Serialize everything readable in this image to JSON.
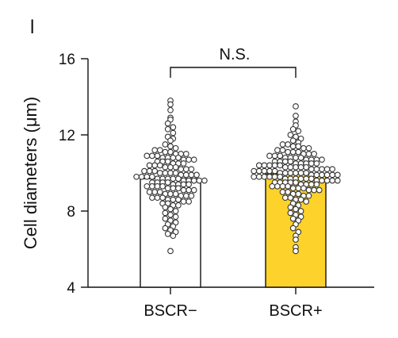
{
  "panel_label": "l",
  "chart_data": {
    "type": "bar",
    "title": "",
    "xlabel": "",
    "ylabel": "Cell diameters (μm)",
    "ylim": [
      4,
      16
    ],
    "yticks": [
      "4",
      "8",
      "12",
      "16"
    ],
    "categories": [
      "BSCR−",
      "BSCR+"
    ],
    "values": [
      9.7,
      9.95
    ],
    "bar_colors": [
      "#ffffff",
      "#fdd22a"
    ],
    "significance": {
      "label": "N.S.",
      "between": [
        "BSCR−",
        "BSCR+"
      ]
    },
    "points": [
      [
        13.8,
        13.6,
        13.3,
        12.9,
        12.8,
        12.6,
        12.4,
        12.3,
        12.1,
        11.9,
        11.8,
        11.7,
        11.5,
        11.4,
        11.3,
        11.2,
        11.2,
        11.1,
        11.1,
        11.0,
        11.0,
        11.0,
        10.9,
        10.9,
        10.9,
        10.8,
        10.8,
        10.8,
        10.8,
        10.7,
        10.7,
        10.7,
        10.6,
        10.6,
        10.6,
        10.5,
        10.5,
        10.5,
        10.4,
        10.4,
        10.4,
        10.3,
        10.3,
        10.3,
        10.2,
        10.2,
        10.2,
        10.1,
        10.1,
        10.1,
        10.0,
        10.0,
        10.0,
        10.0,
        9.9,
        9.9,
        9.9,
        9.9,
        9.8,
        9.8,
        9.8,
        9.8,
        9.7,
        9.7,
        9.7,
        9.7,
        9.7,
        9.6,
        9.6,
        9.6,
        9.6,
        9.6,
        9.5,
        9.5,
        9.5,
        9.5,
        9.4,
        9.4,
        9.4,
        9.4,
        9.3,
        9.3,
        9.3,
        9.3,
        9.2,
        9.2,
        9.2,
        9.1,
        9.1,
        9.1,
        9.0,
        9.0,
        9.0,
        8.9,
        8.9,
        8.9,
        8.8,
        8.8,
        8.8,
        8.7,
        8.7,
        8.7,
        8.6,
        8.6,
        8.6,
        8.5,
        8.5,
        8.4,
        8.4,
        8.3,
        8.3,
        8.2,
        8.1,
        8.0,
        7.9,
        7.8,
        7.7,
        7.6,
        7.5,
        7.4,
        7.3,
        7.2,
        7.1,
        7.0,
        6.9,
        6.8,
        6.7,
        5.9
      ],
      [
        13.5,
        13.0,
        12.7,
        12.5,
        12.3,
        12.2,
        12.0,
        11.9,
        11.8,
        11.7,
        11.6,
        11.5,
        11.5,
        11.4,
        11.4,
        11.3,
        11.3,
        11.2,
        11.2,
        11.1,
        11.1,
        11.1,
        11.0,
        11.0,
        11.0,
        10.9,
        10.9,
        10.9,
        10.8,
        10.8,
        10.8,
        10.8,
        10.7,
        10.7,
        10.7,
        10.7,
        10.6,
        10.6,
        10.6,
        10.6,
        10.5,
        10.5,
        10.5,
        10.5,
        10.5,
        10.4,
        10.4,
        10.4,
        10.4,
        10.4,
        10.3,
        10.3,
        10.3,
        10.3,
        10.3,
        10.2,
        10.2,
        10.2,
        10.2,
        10.2,
        10.1,
        10.1,
        10.1,
        10.1,
        10.1,
        10.0,
        10.0,
        10.0,
        10.0,
        10.0,
        10.0,
        9.9,
        9.9,
        9.9,
        9.9,
        9.9,
        9.9,
        9.8,
        9.8,
        9.8,
        9.8,
        9.8,
        9.8,
        9.7,
        9.7,
        9.7,
        9.7,
        9.7,
        9.7,
        9.6,
        9.6,
        9.6,
        9.6,
        9.6,
        9.5,
        9.5,
        9.5,
        9.5,
        9.5,
        9.4,
        9.4,
        9.4,
        9.4,
        9.3,
        9.3,
        9.3,
        9.3,
        9.2,
        9.2,
        9.2,
        9.1,
        9.1,
        9.1,
        9.0,
        9.0,
        8.9,
        8.9,
        8.8,
        8.8,
        8.7,
        8.7,
        8.6,
        8.6,
        8.5,
        8.4,
        8.3,
        8.2,
        8.1,
        8.0,
        7.9,
        7.8,
        7.7,
        7.6,
        7.5,
        7.3,
        7.1,
        6.9,
        6.7,
        6.5,
        6.1,
        5.9
      ]
    ]
  }
}
